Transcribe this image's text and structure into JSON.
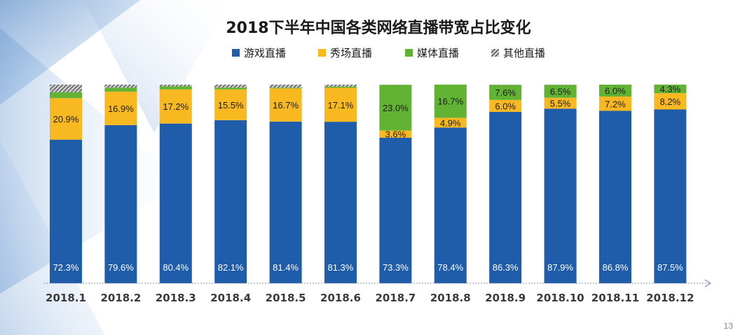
{
  "page_number": "13",
  "colors": {
    "game": "#1f5dab",
    "show": "#f8b81f",
    "media": "#62b234",
    "other_stripe": "#7a7a7a",
    "label_on_blue": "#ffffff",
    "label_default": "#1a1a1a"
  },
  "chart_data": {
    "type": "bar",
    "stacked": true,
    "title": "2018下半年中国各类网络直播带宽占比变化",
    "legend_position": "top",
    "categories": [
      "2018.1",
      "2018.2",
      "2018.3",
      "2018.4",
      "2018.5",
      "2018.6",
      "2018.7",
      "2018.8",
      "2018.9",
      "2018.10",
      "2018.11",
      "2018.12"
    ],
    "ylim": [
      0,
      100
    ],
    "series": [
      {
        "name": "游戏直播",
        "values": [
          72.3,
          79.6,
          80.4,
          82.1,
          81.4,
          81.3,
          73.3,
          78.4,
          86.3,
          87.9,
          86.8,
          87.5
        ],
        "labels": [
          "72.3%",
          "79.6%",
          "80.4%",
          "82.1%",
          "81.4%",
          "81.3%",
          "73.3%",
          "78.4%",
          "86.3%",
          "87.9%",
          "86.8%",
          "87.5%"
        ]
      },
      {
        "name": "秀场直播",
        "values": [
          20.9,
          16.9,
          17.2,
          15.5,
          16.7,
          17.1,
          3.6,
          4.9,
          6.0,
          5.5,
          7.2,
          8.2
        ],
        "labels": [
          "20.9%",
          "16.9%",
          "17.2%",
          "15.5%",
          "16.7%",
          "17.1%",
          "3.6%",
          "4.9%",
          "6.0%",
          "5.5%",
          "7.2%",
          "8.2%"
        ]
      },
      {
        "name": "媒体直播",
        "values": [
          3.0,
          2.0,
          1.6,
          0.9,
          0.4,
          0.6,
          23.0,
          16.7,
          7.6,
          6.5,
          6.0,
          4.3
        ],
        "labels": [
          "",
          "",
          "",
          "",
          "",
          "",
          "23.0%",
          "16.7%",
          "7.6%",
          "6.5%",
          "6.0%",
          "4.3%"
        ]
      },
      {
        "name": "其他直播",
        "values": [
          3.8,
          1.5,
          0.8,
          1.5,
          1.5,
          1.0,
          0.1,
          0.0,
          0.1,
          0.1,
          0.0,
          0.0
        ],
        "labels": [
          "",
          "",
          "",
          "",
          "",
          "",
          "",
          "",
          "",
          "",
          "",
          ""
        ]
      }
    ]
  }
}
